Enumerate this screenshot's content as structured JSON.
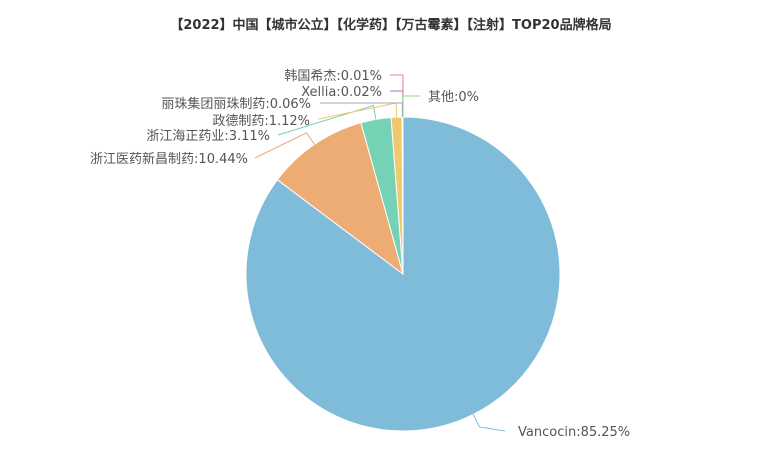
{
  "chart_data": {
    "type": "pie",
    "title": "【2022】中国【城市公立】【化学药】【万古霉素】【注射】TOP20品牌格局",
    "slices": [
      {
        "name": "Vancocin",
        "value": 85.25,
        "label": "Vancocin:85.25%",
        "color": "#7fbcd9"
      },
      {
        "name": "浙江医药新昌制药",
        "value": 10.44,
        "label": "浙江医药新昌制药:10.44%",
        "color": "#ecac74"
      },
      {
        "name": "浙江海正药业",
        "value": 3.11,
        "label": "浙江海正药业:3.11%",
        "color": "#76d2b4"
      },
      {
        "name": "政德制药",
        "value": 1.12,
        "label": "政德制药:1.12%",
        "color": "#eec96e"
      },
      {
        "name": "丽珠集团丽珠制药",
        "value": 0.06,
        "label": "丽珠集团丽珠制药:0.06%",
        "color": "#a0a8c0"
      },
      {
        "name": "Xellia",
        "value": 0.02,
        "label": "Xellia:0.02%",
        "color": "#6e8fd8"
      },
      {
        "name": "韩国希杰",
        "value": 0.01,
        "label": "韩国希杰:0.01%",
        "color": "#e879a0"
      },
      {
        "name": "其他",
        "value": 0,
        "label": "其他:0%",
        "color": "#96d87a"
      }
    ],
    "legend": "none"
  }
}
